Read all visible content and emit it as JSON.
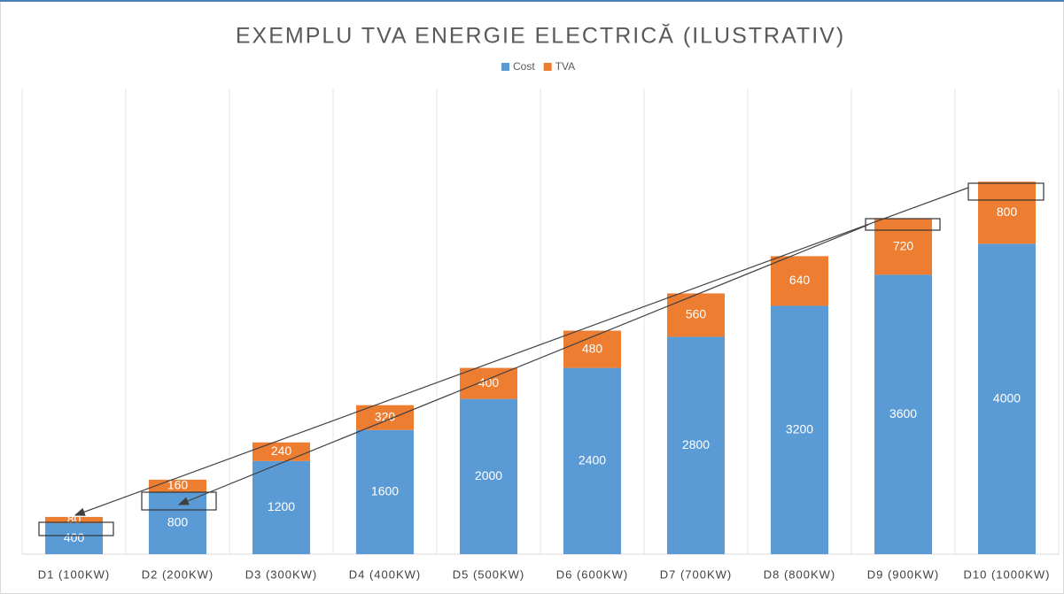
{
  "chart_data": {
    "type": "stacked_bar",
    "title": "EXEMPLU TVA ENERGIE ELECTRICĂ (ILUSTRATIV)",
    "categories": [
      "D1 (100KW)",
      "D2 (200KW)",
      "D3 (300KW)",
      "D4 (400KW)",
      "D5 (500KW)",
      "D6 (600KW)",
      "D7 (700KW)",
      "D8 (800KW)",
      "D9 (900KW)",
      "D10 (1000KW)"
    ],
    "series": [
      {
        "name": "Cost",
        "color": "#5b9bd5",
        "values": [
          400,
          800,
          1200,
          1600,
          2000,
          2400,
          2800,
          3200,
          3600,
          4000
        ]
      },
      {
        "name": "TVA",
        "color": "#ed7d31",
        "values": [
          80,
          160,
          240,
          320,
          400,
          480,
          560,
          640,
          720,
          800
        ]
      }
    ],
    "ylim": [
      0,
      6000
    ],
    "legend": "top"
  }
}
